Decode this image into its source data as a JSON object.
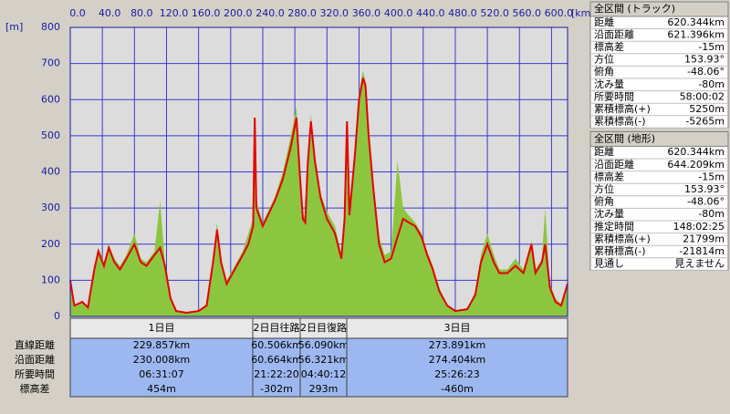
{
  "chart_data": {
    "type": "area",
    "y_unit_label": "[m]",
    "x_unit_label": "[km]",
    "x": [
      0,
      5,
      15,
      22,
      30,
      35,
      42,
      48,
      55,
      62,
      70,
      80,
      88,
      95,
      105,
      112,
      118,
      125,
      132,
      145,
      160,
      170,
      178,
      183,
      188,
      195,
      205,
      215,
      222,
      228,
      230,
      232,
      240,
      255,
      265,
      275,
      282,
      286,
      290,
      293,
      296,
      300,
      305,
      312,
      320,
      330,
      338,
      342,
      345,
      348,
      355,
      360,
      365,
      368,
      372,
      378,
      385,
      392,
      400,
      408,
      415,
      422,
      430,
      438,
      445,
      452,
      460,
      470,
      480,
      495,
      505,
      512,
      520,
      528,
      535,
      545,
      555,
      565,
      575,
      580,
      588,
      592,
      598,
      605,
      612,
      620
    ],
    "series": [
      {
        "type": "area",
        "color": "#8cc63f",
        "values": [
          90,
          30,
          45,
          25,
          140,
          190,
          150,
          200,
          160,
          140,
          170,
          230,
          160,
          150,
          180,
          320,
          150,
          60,
          15,
          10,
          15,
          35,
          160,
          260,
          160,
          100,
          140,
          180,
          230,
          270,
          540,
          320,
          260,
          330,
          400,
          500,
          580,
          420,
          290,
          270,
          440,
          560,
          450,
          340,
          290,
          250,
          170,
          290,
          520,
          300,
          470,
          620,
          680,
          650,
          520,
          370,
          220,
          170,
          180,
          430,
          300,
          280,
          260,
          230,
          180,
          140,
          80,
          30,
          15,
          20,
          70,
          170,
          230,
          170,
          130,
          130,
          160,
          130,
          210,
          130,
          160,
          300,
          90,
          50,
          35,
          80
        ]
      },
      {
        "type": "line",
        "color": "#e60000",
        "values": [
          100,
          30,
          40,
          25,
          130,
          180,
          140,
          190,
          150,
          130,
          160,
          200,
          150,
          140,
          170,
          190,
          140,
          50,
          15,
          10,
          15,
          30,
          150,
          240,
          150,
          90,
          130,
          170,
          200,
          250,
          550,
          300,
          250,
          320,
          380,
          470,
          550,
          400,
          270,
          260,
          420,
          540,
          430,
          330,
          270,
          230,
          160,
          270,
          540,
          280,
          450,
          600,
          660,
          640,
          500,
          350,
          200,
          150,
          160,
          220,
          270,
          260,
          250,
          220,
          170,
          130,
          70,
          30,
          15,
          20,
          60,
          150,
          200,
          150,
          120,
          120,
          140,
          120,
          200,
          120,
          150,
          200,
          80,
          40,
          30,
          90
        ]
      }
    ],
    "xlim": [
      0,
      620
    ],
    "ylim": [
      0,
      800
    ],
    "xticks": [
      {
        "value": 0,
        "label": "0.0"
      },
      {
        "value": 40,
        "label": "40.0"
      },
      {
        "value": 80,
        "label": "80.0"
      },
      {
        "value": 120,
        "label": "120.0"
      },
      {
        "value": 160,
        "label": "160.0"
      },
      {
        "value": 200,
        "label": "200.0"
      },
      {
        "value": 240,
        "label": "240.0"
      },
      {
        "value": 280,
        "label": "280.0"
      },
      {
        "value": 320,
        "label": "320.0"
      },
      {
        "value": 360,
        "label": "360.0"
      },
      {
        "value": 400,
        "label": "400.0"
      },
      {
        "value": 440,
        "label": "440.0"
      },
      {
        "value": 480,
        "label": "480.0"
      },
      {
        "value": 520,
        "label": "520.0"
      },
      {
        "value": 560,
        "label": "560.0"
      },
      {
        "value": 600,
        "label": "600.0"
      }
    ],
    "yticks": [
      0,
      100,
      200,
      300,
      400,
      500,
      600,
      700,
      800
    ],
    "grid": true
  },
  "segments": {
    "row_labels": [
      "直線距離",
      "沿面距離",
      "所要時間",
      "標高差"
    ],
    "columns": [
      {
        "name": "1日目",
        "cells": [
          "229.857km",
          "230.008km",
          "06:31:07",
          "454m"
        ]
      },
      {
        "name": "2日目往路",
        "cells": [
          "60.506km",
          "60.664km",
          "21:22:20",
          "-302m"
        ]
      },
      {
        "name": "2日目復路",
        "cells": [
          "56.090km",
          "56.321km",
          "04:40:12",
          "293m"
        ]
      },
      {
        "name": "3日目",
        "cells": [
          "273.891km",
          "274.404km",
          "25:26:23",
          "-460m"
        ]
      }
    ]
  },
  "panels": [
    {
      "title": "全区間 (トラック)",
      "rows": [
        [
          "距離",
          "620.344km"
        ],
        [
          "沿面距離",
          "621.396km"
        ],
        [
          "標高差",
          "-15m"
        ],
        [
          "方位",
          "153.93°"
        ],
        [
          "俯角",
          "-48.06°"
        ],
        [
          "沈み量",
          "-80m"
        ],
        [
          "所要時間",
          "58:00:02"
        ],
        [
          "累積標高(+)",
          "5250m"
        ],
        [
          "累積標高(-)",
          "-5265m"
        ]
      ]
    },
    {
      "title": "全区間 (地形)",
      "rows": [
        [
          "距離",
          "620.344km"
        ],
        [
          "沿面距離",
          "644.209km"
        ],
        [
          "標高差",
          "-15m"
        ],
        [
          "方位",
          "153.93°"
        ],
        [
          "俯角",
          "-48.06°"
        ],
        [
          "沈み量",
          "-80m"
        ],
        [
          "推定時間",
          "148:02:25"
        ],
        [
          "累積標高(+)",
          "21799m"
        ],
        [
          "累積標高(-)",
          "-21814m"
        ],
        [
          "見通し",
          "見えません"
        ]
      ]
    }
  ]
}
